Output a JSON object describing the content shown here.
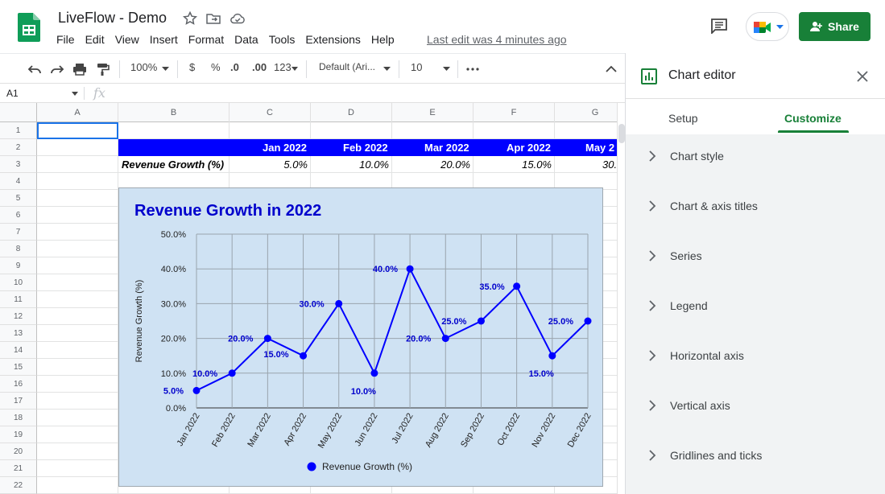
{
  "app": {
    "doc_title": "LiveFlow - Demo",
    "menu": [
      "File",
      "Edit",
      "View",
      "Insert",
      "Format",
      "Data",
      "Tools",
      "Extensions",
      "Help"
    ],
    "last_edit": "Last edit was 4 minutes ago",
    "share_label": "Share"
  },
  "toolbar": {
    "zoom": "100%",
    "currency": "$",
    "percent": "%",
    "dec_decrease": ".0",
    "dec_increase": ".00",
    "more_formats": "123",
    "font": "Default (Ari...",
    "font_size": "10"
  },
  "formula_bar": {
    "cell_ref": "A1",
    "fx": "fx"
  },
  "sheet": {
    "columns": [
      "A",
      "B",
      "C",
      "D",
      "E",
      "F",
      "G"
    ],
    "rows": [
      "1",
      "2",
      "3",
      "4",
      "5",
      "6",
      "7",
      "8",
      "9",
      "10",
      "11",
      "12",
      "13",
      "14",
      "15",
      "16",
      "17",
      "18",
      "19",
      "20",
      "21",
      "22"
    ],
    "header_months": [
      "Jan 2022",
      "Feb 2022",
      "Mar 2022",
      "Apr 2022",
      "May 2"
    ],
    "row_label": "Revenue Growth (%)",
    "row_values": [
      "5.0%",
      "10.0%",
      "20.0%",
      "15.0%",
      "30."
    ]
  },
  "chart_data": {
    "type": "line",
    "title": "Revenue Growth in 2022",
    "ylabel": "Revenue Growth (%)",
    "xlabel": "",
    "categories": [
      "Jan 2022",
      "Feb 2022",
      "Mar 2022",
      "Apr 2022",
      "May 2022",
      "Jun 2022",
      "Jul 2022",
      "Aug 2022",
      "Sep 2022",
      "Oct 2022",
      "Nov 2022",
      "Dec 2022"
    ],
    "series": [
      {
        "name": "Revenue Growth (%)",
        "values": [
          5,
          10,
          20,
          15,
          30,
          10,
          40,
          20,
          25,
          35,
          15,
          25
        ],
        "color": "#0000ff"
      }
    ],
    "data_labels": [
      "5.0%",
      "10.0%",
      "20.0%",
      "15.0%",
      "30.0%",
      "10.0%",
      "40.0%",
      "20.0%",
      "25.0%",
      "35.0%",
      "15.0%",
      "25.0%"
    ],
    "yticks": [
      "0.0%",
      "10.0%",
      "20.0%",
      "30.0%",
      "40.0%",
      "50.0%"
    ],
    "ylim": [
      0,
      50
    ],
    "grid": true,
    "legend": "bottom",
    "background": "#cfe2f3",
    "title_color": "#0000cc"
  },
  "panel": {
    "title": "Chart editor",
    "tabs": [
      "Setup",
      "Customize"
    ],
    "active_tab": "Customize",
    "sections": [
      "Chart style",
      "Chart & axis titles",
      "Series",
      "Legend",
      "Horizontal axis",
      "Vertical axis",
      "Gridlines and ticks"
    ]
  },
  "colors": {
    "accent": "#188038",
    "header_band": "#0000ff",
    "selection": "#1a73e8"
  }
}
